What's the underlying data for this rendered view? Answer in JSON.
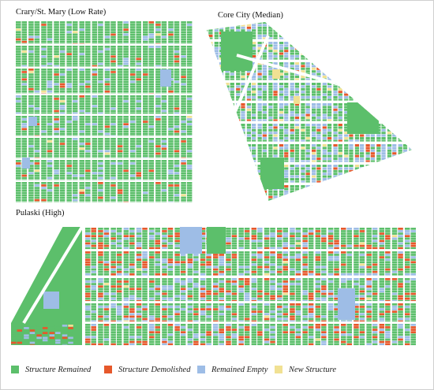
{
  "colors": {
    "remained": "#5cbf6b",
    "demolished": "#e6582b",
    "empty": "#9ebde6",
    "new": "#f1e193",
    "street": "#ffffff"
  },
  "panels": [
    {
      "id": "crary",
      "title": "Crary/St. Mary (Low Rate)"
    },
    {
      "id": "core",
      "title": "Core City (Median)"
    },
    {
      "id": "pulaski",
      "title": "Pulaski (High)"
    }
  ],
  "legend": [
    {
      "label": "Structure Remained",
      "color": "#5cbf6b"
    },
    {
      "label": "Structure Demolished",
      "color": "#e6582b"
    },
    {
      "label": "Remained Empty",
      "color": "#9ebde6"
    },
    {
      "label": "New Structure",
      "color": "#f1e193"
    }
  ],
  "mix": {
    "crary": {
      "remained": 0.86,
      "demolished": 0.04,
      "empty": 0.09,
      "new": 0.01
    },
    "core": {
      "remained": 0.58,
      "demolished": 0.06,
      "empty": 0.32,
      "new": 0.04
    },
    "pulaski": {
      "remained": 0.62,
      "demolished": 0.18,
      "empty": 0.19,
      "new": 0.01
    }
  }
}
